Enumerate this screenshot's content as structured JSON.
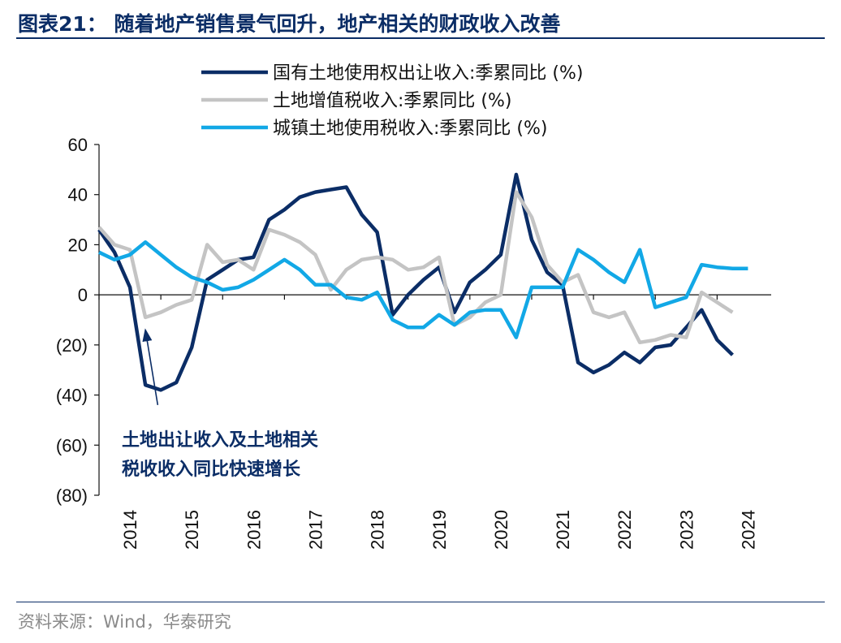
{
  "page": {
    "title": "图表21： 随着地产销售景气回升，地产相关的财政收入改善",
    "source": "资料来源：Wind，华泰研究"
  },
  "chart_data": {
    "type": "line",
    "title": "",
    "xlabel": "",
    "ylabel": "",
    "ylim": [
      -80,
      60
    ],
    "yticks": [
      60,
      40,
      20,
      0,
      -20,
      -40,
      -60,
      -80
    ],
    "ytick_labels": [
      "60",
      "40",
      "20",
      "0",
      "(20)",
      "(40)",
      "(60)",
      "(80)"
    ],
    "xlim": [
      2014.0,
      2024.875
    ],
    "xtick_labels": [
      "2014",
      "2015",
      "2016",
      "2017",
      "2018",
      "2019",
      "2020",
      "2021",
      "2022",
      "2023",
      "2024"
    ],
    "grid": false,
    "legend_placement": "top",
    "annotation": {
      "lines": [
        "土地出让收入及土地相关",
        "税收收入同比快速增长"
      ],
      "arrow_from": [
        2014.95,
        -44
      ],
      "arrow_to": [
        2014.75,
        -14
      ]
    },
    "series": [
      {
        "name": "国有土地使用权出让收入:季累同比 (%)",
        "color": "#0b2d66",
        "points": [
          [
            2014.0,
            26
          ],
          [
            2014.25,
            17
          ],
          [
            2014.5,
            3
          ],
          [
            2014.75,
            -36
          ],
          [
            2015.0,
            -38
          ],
          [
            2015.25,
            -35
          ],
          [
            2015.5,
            -21
          ],
          [
            2015.75,
            6
          ],
          [
            2016.0,
            10
          ],
          [
            2016.25,
            14
          ],
          [
            2016.5,
            15
          ],
          [
            2016.75,
            30
          ],
          [
            2017.0,
            34
          ],
          [
            2017.25,
            39
          ],
          [
            2017.5,
            41
          ],
          [
            2017.75,
            42
          ],
          [
            2018.0,
            43
          ],
          [
            2018.25,
            32
          ],
          [
            2018.5,
            25
          ],
          [
            2018.75,
            -8
          ],
          [
            2019.0,
            0
          ],
          [
            2019.25,
            6
          ],
          [
            2019.5,
            11
          ],
          [
            2019.75,
            -7
          ],
          [
            2020.0,
            5
          ],
          [
            2020.25,
            10
          ],
          [
            2020.5,
            16
          ],
          [
            2020.75,
            48
          ],
          [
            2021.0,
            22
          ],
          [
            2021.25,
            9
          ],
          [
            2021.5,
            4
          ],
          [
            2021.75,
            -27
          ],
          [
            2022.0,
            -31
          ],
          [
            2022.25,
            -28
          ],
          [
            2022.5,
            -23
          ],
          [
            2022.75,
            -27
          ],
          [
            2023.0,
            -21
          ],
          [
            2023.25,
            -20
          ],
          [
            2023.5,
            -13
          ],
          [
            2023.75,
            -6
          ],
          [
            2024.0,
            -18
          ],
          [
            2024.25,
            -24
          ]
        ]
      },
      {
        "name": "土地增值税收入:季累同比 (%)",
        "color": "#c4c4c4",
        "points": [
          [
            2014.0,
            27
          ],
          [
            2014.25,
            20
          ],
          [
            2014.5,
            18
          ],
          [
            2014.75,
            -9
          ],
          [
            2015.0,
            -7
          ],
          [
            2015.25,
            -4
          ],
          [
            2015.5,
            -2
          ],
          [
            2015.75,
            20
          ],
          [
            2016.0,
            13
          ],
          [
            2016.25,
            14
          ],
          [
            2016.5,
            10
          ],
          [
            2016.75,
            26
          ],
          [
            2017.0,
            24
          ],
          [
            2017.25,
            21
          ],
          [
            2017.5,
            16
          ],
          [
            2017.75,
            2
          ],
          [
            2018.0,
            10
          ],
          [
            2018.25,
            14
          ],
          [
            2018.5,
            15
          ],
          [
            2018.75,
            14
          ],
          [
            2019.0,
            10
          ],
          [
            2019.25,
            11
          ],
          [
            2019.5,
            15
          ],
          [
            2019.75,
            -12
          ],
          [
            2020.0,
            -9
          ],
          [
            2020.25,
            -3
          ],
          [
            2020.5,
            0
          ],
          [
            2020.75,
            41
          ],
          [
            2021.0,
            31
          ],
          [
            2021.25,
            12
          ],
          [
            2021.5,
            5
          ],
          [
            2021.75,
            8
          ],
          [
            2022.0,
            -7
          ],
          [
            2022.25,
            -9
          ],
          [
            2022.5,
            -7
          ],
          [
            2022.75,
            -19
          ],
          [
            2023.0,
            -18
          ],
          [
            2023.25,
            -16
          ],
          [
            2023.5,
            -17
          ],
          [
            2023.75,
            1
          ],
          [
            2024.0,
            -3
          ],
          [
            2024.25,
            -7
          ]
        ]
      },
      {
        "name": "城镇土地使用税收入:季累同比 (%)",
        "color": "#12a8e6",
        "points": [
          [
            2014.0,
            17
          ],
          [
            2014.25,
            14
          ],
          [
            2014.5,
            16
          ],
          [
            2014.75,
            21
          ],
          [
            2015.0,
            16
          ],
          [
            2015.25,
            11
          ],
          [
            2015.5,
            7
          ],
          [
            2015.75,
            5
          ],
          [
            2016.0,
            2
          ],
          [
            2016.25,
            3
          ],
          [
            2016.5,
            6
          ],
          [
            2016.75,
            10
          ],
          [
            2017.0,
            14
          ],
          [
            2017.25,
            10
          ],
          [
            2017.5,
            4
          ],
          [
            2017.75,
            4
          ],
          [
            2018.0,
            -1
          ],
          [
            2018.25,
            -2
          ],
          [
            2018.5,
            1
          ],
          [
            2018.75,
            -10
          ],
          [
            2019.0,
            -13
          ],
          [
            2019.25,
            -13
          ],
          [
            2019.5,
            -8
          ],
          [
            2019.75,
            -12
          ],
          [
            2020.0,
            -7
          ],
          [
            2020.25,
            -6
          ],
          [
            2020.5,
            -6
          ],
          [
            2020.75,
            -17
          ],
          [
            2021.0,
            3
          ],
          [
            2021.25,
            3
          ],
          [
            2021.5,
            3
          ],
          [
            2021.75,
            18
          ],
          [
            2022.0,
            14
          ],
          [
            2022.25,
            9
          ],
          [
            2022.5,
            5
          ],
          [
            2022.75,
            18
          ],
          [
            2023.0,
            -5
          ],
          [
            2023.25,
            -3
          ],
          [
            2023.5,
            -1
          ],
          [
            2023.75,
            12
          ],
          [
            2024.0,
            11
          ],
          [
            2024.25,
            10.5
          ],
          [
            2024.5,
            10.5
          ]
        ]
      }
    ]
  }
}
